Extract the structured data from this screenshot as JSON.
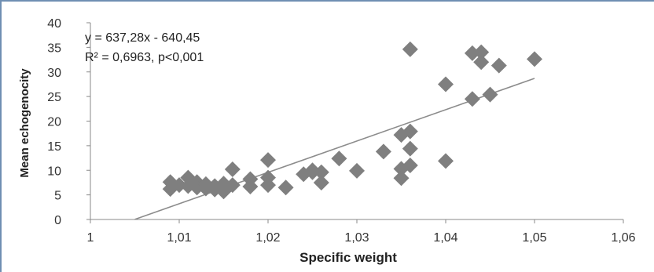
{
  "chart_data": {
    "type": "scatter",
    "title": "",
    "xlabel": "Specific weight",
    "ylabel": "Mean echogenocity",
    "xlim": [
      1,
      1.06
    ],
    "ylim": [
      0,
      40
    ],
    "xticks": [
      1,
      1.01,
      1.02,
      1.03,
      1.04,
      1.05,
      1.06
    ],
    "xtick_labels": [
      "1",
      "1,01",
      "1,02",
      "1,03",
      "1,04",
      "1,05",
      "1,06"
    ],
    "yticks": [
      0,
      5,
      10,
      15,
      20,
      25,
      30,
      35,
      40
    ],
    "ytick_labels": [
      "0",
      "5",
      "10",
      "15",
      "20",
      "25",
      "30",
      "35",
      "40"
    ],
    "grid": false,
    "legend": "none",
    "marker": "diamond",
    "marker_color": "#7f7f7f",
    "trendline": {
      "slope": 637.28,
      "intercept": -640.45,
      "x_range": [
        1.005,
        1.05
      ],
      "color": "#8c8c8c"
    },
    "annotations": [
      "y = 637,28x - 640,45",
      "R² = 0,6963, p<0,001"
    ],
    "points": [
      {
        "x": 1.009,
        "y": 6.2
      },
      {
        "x": 1.009,
        "y": 7.6
      },
      {
        "x": 1.01,
        "y": 7.0
      },
      {
        "x": 1.011,
        "y": 8.5
      },
      {
        "x": 1.011,
        "y": 6.8
      },
      {
        "x": 1.012,
        "y": 7.6
      },
      {
        "x": 1.012,
        "y": 6.5
      },
      {
        "x": 1.013,
        "y": 6.3
      },
      {
        "x": 1.013,
        "y": 7.2
      },
      {
        "x": 1.014,
        "y": 6.1
      },
      {
        "x": 1.014,
        "y": 6.8
      },
      {
        "x": 1.015,
        "y": 7.3
      },
      {
        "x": 1.015,
        "y": 5.7
      },
      {
        "x": 1.015,
        "y": 6.5
      },
      {
        "x": 1.016,
        "y": 7.0
      },
      {
        "x": 1.016,
        "y": 10.2
      },
      {
        "x": 1.018,
        "y": 6.7
      },
      {
        "x": 1.018,
        "y": 8.2
      },
      {
        "x": 1.02,
        "y": 12.1
      },
      {
        "x": 1.02,
        "y": 8.5
      },
      {
        "x": 1.02,
        "y": 7.0
      },
      {
        "x": 1.022,
        "y": 6.5
      },
      {
        "x": 1.024,
        "y": 9.2
      },
      {
        "x": 1.025,
        "y": 10.0
      },
      {
        "x": 1.025,
        "y": 9.6
      },
      {
        "x": 1.026,
        "y": 7.5
      },
      {
        "x": 1.026,
        "y": 9.6
      },
      {
        "x": 1.028,
        "y": 12.4
      },
      {
        "x": 1.03,
        "y": 9.9
      },
      {
        "x": 1.033,
        "y": 13.8
      },
      {
        "x": 1.035,
        "y": 17.2
      },
      {
        "x": 1.035,
        "y": 10.3
      },
      {
        "x": 1.035,
        "y": 8.4
      },
      {
        "x": 1.036,
        "y": 17.9
      },
      {
        "x": 1.036,
        "y": 14.4
      },
      {
        "x": 1.036,
        "y": 11.0
      },
      {
        "x": 1.036,
        "y": 34.6
      },
      {
        "x": 1.04,
        "y": 27.5
      },
      {
        "x": 1.04,
        "y": 11.9
      },
      {
        "x": 1.043,
        "y": 33.8
      },
      {
        "x": 1.043,
        "y": 24.5
      },
      {
        "x": 1.044,
        "y": 34.0
      },
      {
        "x": 1.044,
        "y": 32.0
      },
      {
        "x": 1.045,
        "y": 25.4
      },
      {
        "x": 1.046,
        "y": 31.3
      },
      {
        "x": 1.05,
        "y": 32.6
      }
    ]
  }
}
